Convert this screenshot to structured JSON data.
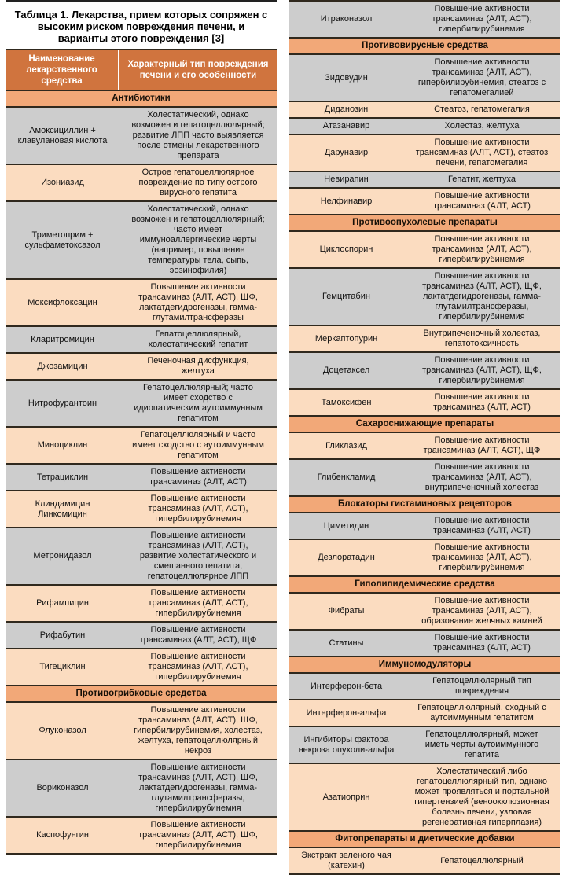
{
  "title": "Таблица 1. Лекарства, прием которых сопряжен с высоким риском повреждения печени, и варианты этого повреждения [3]",
  "header": {
    "col1": "Наименование лекарственного средства",
    "col2": "Характерный тип повреждения печени и его особенности"
  },
  "colors": {
    "header_bg": "#d0743e",
    "header_text": "#ffffff",
    "section_bg": "#f2a878",
    "row_gray": "#cdcdcd",
    "row_peach": "#fbdcc0",
    "line": "#30291e",
    "rule": "#222222",
    "text": "#111111"
  },
  "columns": [
    {
      "blocks": [
        {
          "type": "section",
          "label": "Антибиотики"
        },
        {
          "type": "row",
          "tone": "gray",
          "name": "Амоксициллин + клавулановая кислота",
          "desc": "Холестатический, однако возможен и гепатоцеллюлярный; развитие ЛПП часто выявляется после отмены лекарственного препарата"
        },
        {
          "type": "row",
          "tone": "peach",
          "name": "Изониазид",
          "desc": "Острое гепатоцеллюлярное повреждение по типу острого вирусного гепатита"
        },
        {
          "type": "row",
          "tone": "gray",
          "name": "Триметоприм + сульфаметоксазол",
          "desc": "Холестатический, однако возможен и гепатоцеллюлярный; часто имеет иммуноаллергические черты (например, повышение температуры тела, сыпь, эозинофилия)"
        },
        {
          "type": "row",
          "tone": "peach",
          "name": "Моксифлоксацин",
          "desc": "Повышение активности трансаминаз (АЛТ, АСТ), ЩФ, лактатдегидрогеназы, гамма-глутамилтрансферазы"
        },
        {
          "type": "row",
          "tone": "gray",
          "name": "Кларитромицин",
          "desc": "Гепатоцеллюлярный, холестатический гепатит"
        },
        {
          "type": "row",
          "tone": "peach",
          "name": "Джозамицин",
          "desc": "Печеночная дисфункция, желтуха"
        },
        {
          "type": "row",
          "tone": "gray",
          "name": "Нитрофурантоин",
          "desc": "Гепатоцеллюлярный; часто имеет сходство с идиопатическим аутоиммунным гепатитом"
        },
        {
          "type": "row",
          "tone": "peach",
          "name": "Миноциклин",
          "desc": "Гепатоцеллюлярный и часто имеет сходство с аутоиммунным гепатитом"
        },
        {
          "type": "row",
          "tone": "gray",
          "name": "Тетрациклин",
          "desc": "Повышение активности трансаминаз (АЛТ, АСТ)"
        },
        {
          "type": "row",
          "tone": "peach",
          "name": "Клиндамицин\nЛинкомицин",
          "desc": "Повышение активности трансаминаз (АЛТ, АСТ), гипербилирубинемия"
        },
        {
          "type": "row",
          "tone": "gray",
          "name": "Метронидазол",
          "desc": "Повышение активности трансаминаз (АЛТ, АСТ), развитие холестатического и смешанного гепатита, гепатоцеллюлярное ЛПП"
        },
        {
          "type": "row",
          "tone": "peach",
          "name": "Рифампицин",
          "desc": "Повышение активности трансаминаз (АЛТ, АСТ), гипербилирубинемия"
        },
        {
          "type": "row",
          "tone": "gray",
          "name": "Рифабутин",
          "desc": "Повышение активности трансаминаз (АЛТ, АСТ), ЩФ"
        },
        {
          "type": "row",
          "tone": "peach",
          "name": "Тигециклин",
          "desc": "Повышение активности трансаминаз (АЛТ, АСТ), гипербилирубинемия"
        },
        {
          "type": "section",
          "label": "Противогрибковые средства"
        },
        {
          "type": "row",
          "tone": "peach",
          "name": "Флуконазол",
          "desc": "Повышение активности трансаминаз (АЛТ, АСТ), ЩФ, гипербилирубинемия, холестаз, желтуха, гепатоцеллюлярный некроз"
        },
        {
          "type": "row",
          "tone": "gray",
          "name": "Вориконазол",
          "desc": "Повышение активности трансаминаз (АЛТ, АСТ), ЩФ, лактатдегидрогеназы, гамма-глутамилтрансферазы, гипербилирубинемия"
        },
        {
          "type": "row",
          "tone": "peach",
          "name": "Каспофунгин",
          "desc": "Повышение активности трансаминаз (АЛТ, АСТ), ЩФ, гипербилирубинемия"
        }
      ]
    },
    {
      "blocks": [
        {
          "type": "row",
          "tone": "gray",
          "name": "Итраконазол",
          "desc": "Повышение активности трансаминаз (АЛТ, АСТ), гипербилирубинемия"
        },
        {
          "type": "section",
          "label": "Противовирусные средства"
        },
        {
          "type": "row",
          "tone": "gray",
          "name": "Зидовудин",
          "desc": "Повышение активности трансаминаз (АЛТ, АСТ), гипербилирубинемия, стеатоз с гепатомегалией"
        },
        {
          "type": "row",
          "tone": "peach",
          "name": "Диданозин",
          "desc": "Стеатоз, гепатомегалия"
        },
        {
          "type": "row",
          "tone": "gray",
          "name": "Атазанавир",
          "desc": "Холестаз, желтуха"
        },
        {
          "type": "row",
          "tone": "peach",
          "name": "Дарунавир",
          "desc": "Повышение активности трансаминаз (АЛТ, АСТ), стеатоз печени, гепатомегалия"
        },
        {
          "type": "row",
          "tone": "gray",
          "name": "Невирапин",
          "desc": "Гепатит, желтуха"
        },
        {
          "type": "row",
          "tone": "peach",
          "name": "Нелфинавир",
          "desc": "Повышение активности трансаминаз (АЛТ, АСТ)"
        },
        {
          "type": "section",
          "label": "Противоопухолевые препараты"
        },
        {
          "type": "row",
          "tone": "peach",
          "name": "Циклоспорин",
          "desc": "Повышение активности трансаминаз (АЛТ, АСТ), гипербилирубинемия"
        },
        {
          "type": "row",
          "tone": "gray",
          "name": "Гемцитабин",
          "desc": "Повышение активности трансаминаз (АЛТ, АСТ), ЩФ, лактатдегидрогеназы, гамма-глутамилтрансферазы, гипербилирубинемия"
        },
        {
          "type": "row",
          "tone": "peach",
          "name": "Меркаптопурин",
          "desc": "Внутрипеченочный холестаз, гепатотоксичность"
        },
        {
          "type": "row",
          "tone": "gray",
          "name": "Доцетаксел",
          "desc": "Повышение активности трансаминаз (АЛТ, АСТ), ЩФ, гипербилирубинемия"
        },
        {
          "type": "row",
          "tone": "peach",
          "name": "Тамоксифен",
          "desc": "Повышение активности трансаминаз (АЛТ, АСТ)"
        },
        {
          "type": "section",
          "label": "Сахароснижающие препараты"
        },
        {
          "type": "row",
          "tone": "peach",
          "name": "Гликлазид",
          "desc": "Повышение активности трансаминаз (АЛТ, АСТ), ЩФ"
        },
        {
          "type": "row",
          "tone": "gray",
          "name": "Глибенкламид",
          "desc": "Повышение активности трансаминаз (АЛТ, АСТ), внутрипеченочный холестаз"
        },
        {
          "type": "section",
          "label": "Блокаторы гистаминовых рецепторов"
        },
        {
          "type": "row",
          "tone": "gray",
          "name": "Циметидин",
          "desc": "Повышение активности трансаминаз (АЛТ, АСТ)"
        },
        {
          "type": "row",
          "tone": "peach",
          "name": "Дезлоратадин",
          "desc": "Повышение активности трансаминаз (АЛТ, АСТ), гипербилирубинемия"
        },
        {
          "type": "section",
          "label": "Гиполипидемические средства"
        },
        {
          "type": "row",
          "tone": "peach",
          "name": "Фибраты",
          "desc": "Повышение активности трансаминаз (АЛТ, АСТ), образование желчных камней"
        },
        {
          "type": "row",
          "tone": "gray",
          "name": "Статины",
          "desc": "Повышение активности трансаминаз (АЛТ, АСТ)"
        },
        {
          "type": "section",
          "label": "Иммуномодуляторы"
        },
        {
          "type": "row",
          "tone": "gray",
          "name": "Интерферон-бета",
          "desc": "Гепатоцеллюлярный тип повреждения"
        },
        {
          "type": "row",
          "tone": "peach",
          "name": "Интерферон-альфа",
          "desc": "Гепатоцеллюлярный, сходный с аутоиммунным гепатитом"
        },
        {
          "type": "row",
          "tone": "gray",
          "name": "Ингибиторы фактора некроза опухоли-альфа",
          "desc": "Гепатоцеллюлярный, может иметь черты аутоиммунного гепатита"
        },
        {
          "type": "row",
          "tone": "peach",
          "name": "Азатиоприн",
          "desc": "Холестатический либо гепатоцеллюлярный тип, однако может проявляться и портальной гипертензией (веноокклюзионная болезнь печени, узловая регенеративная гиперплазия)"
        },
        {
          "type": "section",
          "label": "Фитопрепараты и диетические добавки"
        },
        {
          "type": "row",
          "tone": "peach",
          "name": "Экстракт зеленого чая (катехин)",
          "desc": "Гепатоцеллюлярный"
        }
      ]
    }
  ]
}
